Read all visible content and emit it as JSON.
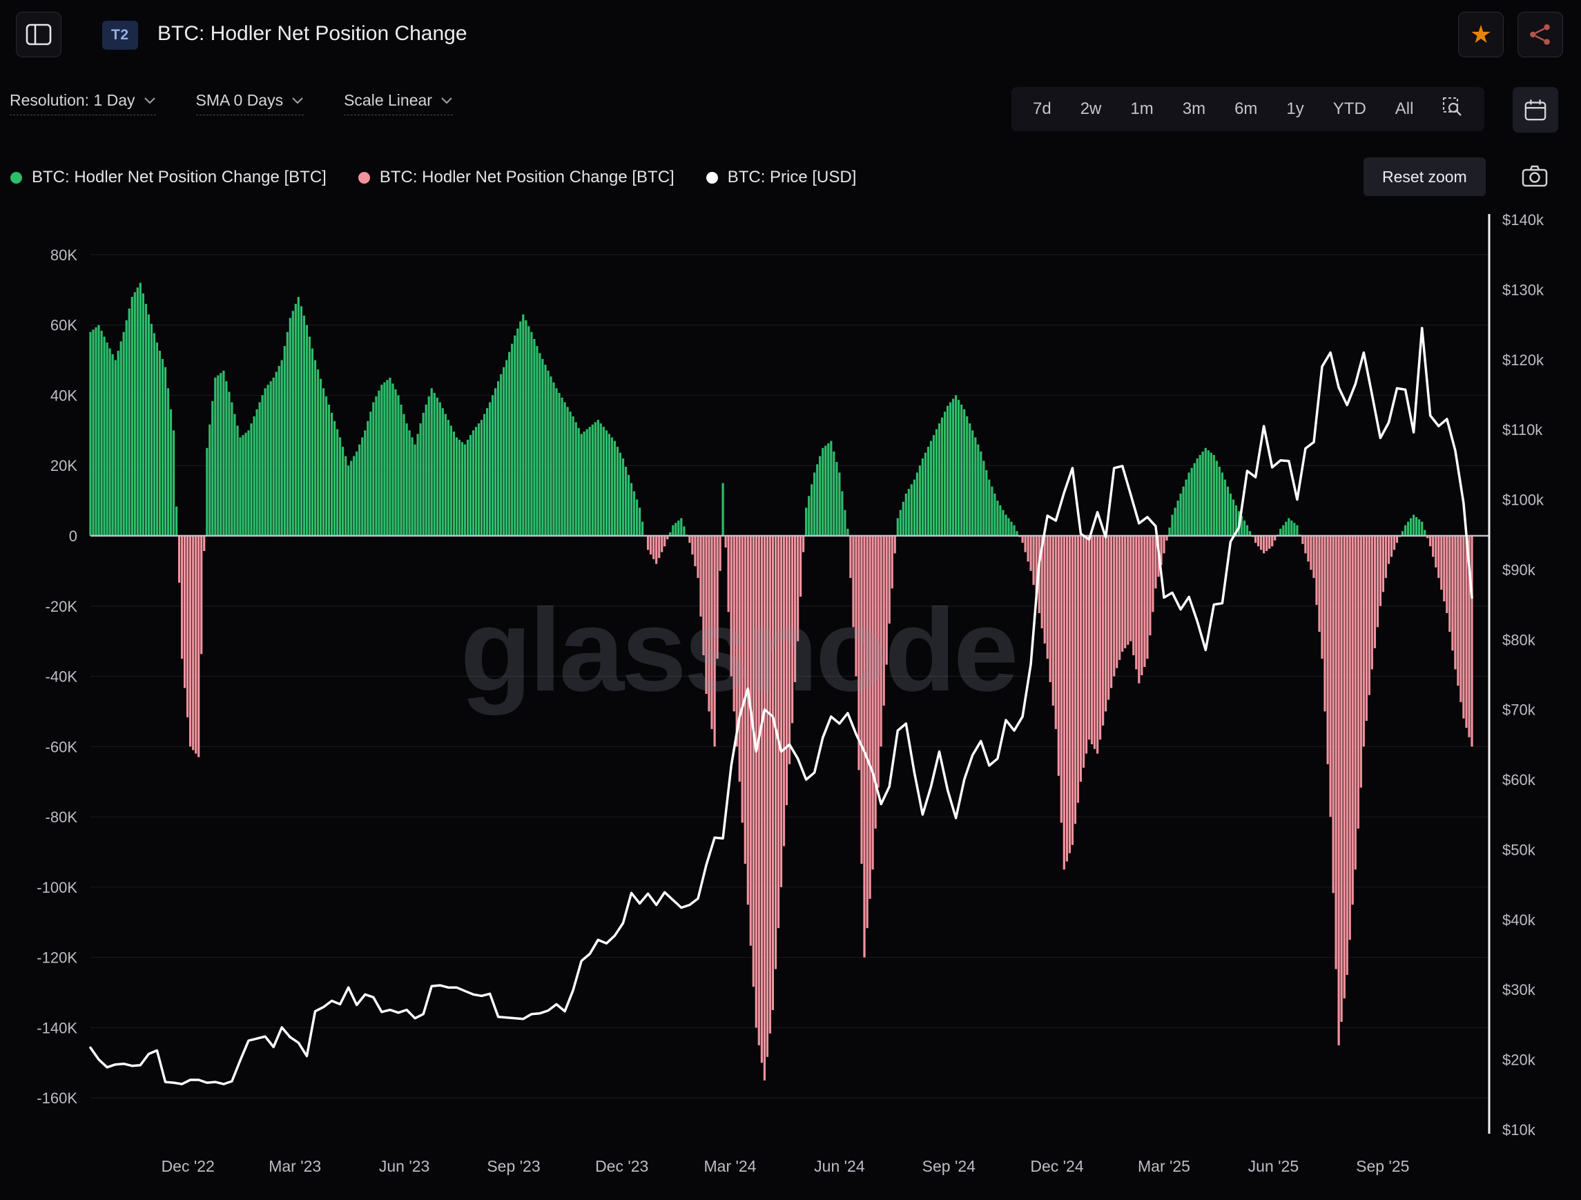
{
  "header": {
    "badge": "T2",
    "title": "BTC: Hodler Net Position Change"
  },
  "toolbar": {
    "resolution": "Resolution: 1 Day",
    "sma": "SMA 0 Days",
    "scale": "Scale Linear",
    "ranges": [
      "7d",
      "2w",
      "1m",
      "3m",
      "6m",
      "1y",
      "YTD",
      "All"
    ],
    "reset_zoom": "Reset zoom"
  },
  "legend": [
    {
      "label": "BTC: Hodler Net Position Change [BTC]",
      "color": "#2ebd6b"
    },
    {
      "label": "BTC: Hodler Net Position Change [BTC]",
      "color": "#f2939e"
    },
    {
      "label": "BTC: Price [USD]",
      "color": "#ffffff"
    }
  ],
  "watermark": "glassnode",
  "chart_data": {
    "type": "combo",
    "start_date": "2022-09-10",
    "interval_days": 7,
    "x_ticks": [
      {
        "label": "Dec '22",
        "date": "2022-12-01"
      },
      {
        "label": "Mar '23",
        "date": "2023-03-01"
      },
      {
        "label": "Jun '23",
        "date": "2023-06-01"
      },
      {
        "label": "Sep '23",
        "date": "2023-09-01"
      },
      {
        "label": "Dec '23",
        "date": "2023-12-01"
      },
      {
        "label": "Mar '24",
        "date": "2024-03-01"
      },
      {
        "label": "Jun '24",
        "date": "2024-06-01"
      },
      {
        "label": "Sep '24",
        "date": "2024-09-01"
      },
      {
        "label": "Dec '24",
        "date": "2024-12-01"
      },
      {
        "label": "Mar '25",
        "date": "2025-03-01"
      },
      {
        "label": "Jun '25",
        "date": "2025-06-01"
      },
      {
        "label": "Sep '25",
        "date": "2025-09-01"
      }
    ],
    "left_axis": {
      "min": -169,
      "max": 90,
      "tick_values": [
        80,
        60,
        40,
        20,
        0,
        -20,
        -40,
        -60,
        -80,
        -100,
        -120,
        -140,
        -160
      ],
      "tick_labels": [
        "80K",
        "60K",
        "40K",
        "20K",
        "0",
        "-20K",
        "-40K",
        "-60K",
        "-80K",
        "-100K",
        "-120K",
        "-140K",
        "-160K"
      ]
    },
    "right_axis": {
      "min": 10,
      "max": 140,
      "tick_values": [
        140,
        130,
        120,
        110,
        100,
        90,
        80,
        70,
        60,
        50,
        40,
        30,
        20,
        10
      ],
      "tick_labels": [
        "$140k",
        "$130k",
        "$120k",
        "$110k",
        "$100k",
        "$90k",
        "$80k",
        "$70k",
        "$60k",
        "$50k",
        "$40k",
        "$30k",
        "$20k",
        "$10k"
      ]
    },
    "series": [
      {
        "name": "BTC: Hodler Net Position Change [BTC]",
        "type": "bar",
        "axis": "left",
        "unit": "thousand BTC",
        "color_positive": "#2ebd6b",
        "color_negative": "#f2939e",
        "values": [
          58,
          60,
          55,
          50,
          58,
          68,
          72,
          63,
          55,
          48,
          30,
          -35,
          -60,
          -63,
          25,
          45,
          47,
          38,
          28,
          30,
          36,
          42,
          45,
          50,
          62,
          68,
          60,
          50,
          42,
          35,
          28,
          20,
          24,
          30,
          38,
          43,
          45,
          40,
          32,
          26,
          35,
          42,
          38,
          33,
          28,
          26,
          30,
          33,
          38,
          44,
          50,
          57,
          63,
          58,
          52,
          47,
          42,
          38,
          34,
          29,
          31,
          33,
          30,
          27,
          22,
          15,
          8,
          -4,
          -8,
          -3,
          3,
          5,
          -2,
          -12,
          -45,
          -60,
          15,
          -40,
          -70,
          -105,
          -140,
          -155,
          -135,
          -100,
          -65,
          -30,
          8,
          18,
          25,
          27,
          18,
          2,
          -40,
          -120,
          -95,
          -60,
          -25,
          5,
          12,
          16,
          22,
          27,
          32,
          37,
          40,
          36,
          30,
          24,
          16,
          10,
          6,
          3,
          -2,
          -10,
          -22,
          -35,
          -55,
          -95,
          -88,
          -70,
          -58,
          -62,
          -50,
          -40,
          -33,
          -30,
          -42,
          -35,
          -15,
          -5,
          6,
          12,
          18,
          22,
          25,
          23,
          18,
          12,
          7,
          3,
          -2,
          -5,
          -3,
          2,
          5,
          3,
          -5,
          -12,
          -35,
          -80,
          -145,
          -125,
          -95,
          -60,
          -38,
          -20,
          -8,
          -2,
          3,
          6,
          4,
          -3,
          -12,
          -22,
          -38,
          -52,
          -60
        ]
      },
      {
        "name": "BTC: Price [USD]",
        "type": "line",
        "axis": "right",
        "unit": "thousand USD",
        "color": "#ffffff",
        "values": [
          21.7,
          20.0,
          18.9,
          19.3,
          19.4,
          19.1,
          19.2,
          20.8,
          21.3,
          16.8,
          16.7,
          16.5,
          17.1,
          17.1,
          16.7,
          16.8,
          16.5,
          16.9,
          19.9,
          22.7,
          23.0,
          23.3,
          21.8,
          24.6,
          23.2,
          22.4,
          20.5,
          26.9,
          27.5,
          28.4,
          27.9,
          30.3,
          27.8,
          29.3,
          28.9,
          26.8,
          27.1,
          26.7,
          27.1,
          25.9,
          26.5,
          30.5,
          30.6,
          30.3,
          30.3,
          29.8,
          29.3,
          29.1,
          29.4,
          26.1,
          26.0,
          25.9,
          25.8,
          26.5,
          26.6,
          27.0,
          27.9,
          26.9,
          29.9,
          34.1,
          35.1,
          37.1,
          36.6,
          37.7,
          39.5,
          43.8,
          42.3,
          43.7,
          42.1,
          43.9,
          42.8,
          41.7,
          42.1,
          43.0,
          47.8,
          51.7,
          51.6,
          62.0,
          69.0,
          73.0,
          64.0,
          70.0,
          69.0,
          64.0,
          65.0,
          63.0,
          60.0,
          61.0,
          66.0,
          69.0,
          68.0,
          69.5,
          66.5,
          64.0,
          61.0,
          56.5,
          59.0,
          67.0,
          68.0,
          61.0,
          55.0,
          59.0,
          64.0,
          58.5,
          54.5,
          60.0,
          63.5,
          65.5,
          62.0,
          63.0,
          68.5,
          67.0,
          69.0,
          76.5,
          91.0,
          97.7,
          97.0,
          101.0,
          104.5,
          95.1,
          94.3,
          98.2,
          94.6,
          104.5,
          104.8,
          100.7,
          96.6,
          97.5,
          96.2,
          86.0,
          86.7,
          84.3,
          86.1,
          82.6,
          78.5,
          85.0,
          85.2,
          94.0,
          96.0,
          104.1,
          103.2,
          110.5,
          104.6,
          105.6,
          105.5,
          100.0,
          107.3,
          108.2,
          119.0,
          121.0,
          116.0,
          113.5,
          116.5,
          121.0,
          115.0,
          108.8,
          111.0,
          115.9,
          115.7,
          109.6,
          124.5,
          112.0,
          110.5,
          111.5,
          107.0,
          99.5,
          86.0
        ]
      }
    ]
  }
}
